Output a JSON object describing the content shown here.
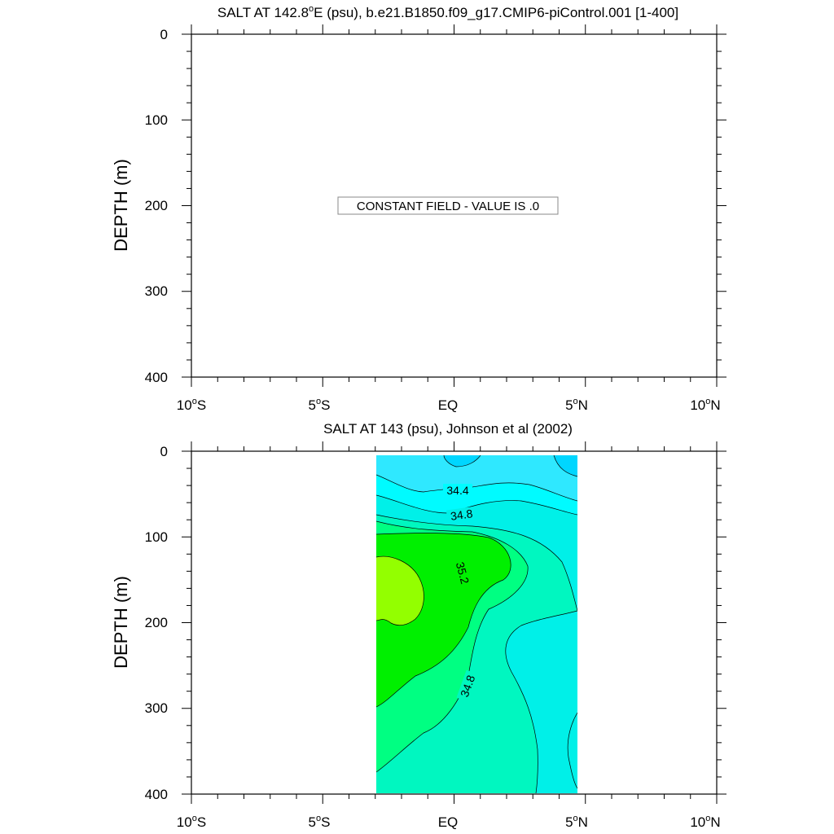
{
  "chart_data": [
    {
      "type": "contour",
      "title_main": "SALT AT 142.8",
      "title_deg": "o",
      "title_rest": "E (psu), b.e21.B1850.f09_g17.CMIP6-piControl.001 [1-400]",
      "ylabel": "DEPTH (m)",
      "xlabel": "",
      "xlim": [
        -10,
        10
      ],
      "ylim": [
        0,
        400
      ],
      "y_inverted": true,
      "x_ticks": [
        {
          "value": -10,
          "num": "10",
          "deg": "o",
          "hemi": "S"
        },
        {
          "value": -5,
          "num": "5",
          "deg": "o",
          "hemi": "S"
        },
        {
          "value": 0,
          "num": "EQ",
          "deg": "",
          "hemi": ""
        },
        {
          "value": 5,
          "num": "5",
          "deg": "o",
          "hemi": "N"
        },
        {
          "value": 10,
          "num": "10",
          "deg": "o",
          "hemi": "N"
        }
      ],
      "y_ticks": [
        0,
        100,
        200,
        300,
        400
      ],
      "annotation": "CONSTANT FIELD - VALUE IS .0",
      "grid": false
    },
    {
      "type": "contour",
      "title": "SALT AT 143 (psu), Johnson et al (2002)",
      "ylabel": "DEPTH (m)",
      "xlabel": "",
      "xlim": [
        -10,
        10
      ],
      "ylim": [
        0,
        400
      ],
      "y_inverted": true,
      "data_extent_x": [
        -2.8,
        5
      ],
      "data_extent_y": [
        5,
        400
      ],
      "x_ticks": [
        {
          "value": -10,
          "num": "10",
          "deg": "o",
          "hemi": "S"
        },
        {
          "value": -5,
          "num": "5",
          "deg": "o",
          "hemi": "S"
        },
        {
          "value": 0,
          "num": "EQ",
          "deg": "",
          "hemi": ""
        },
        {
          "value": 5,
          "num": "5",
          "deg": "o",
          "hemi": "N"
        },
        {
          "value": 10,
          "num": "10",
          "deg": "o",
          "hemi": "N"
        }
      ],
      "y_ticks": [
        0,
        100,
        200,
        300,
        400
      ],
      "contour_labels": [
        {
          "text": "34.4",
          "x": 0.4,
          "y": 45,
          "angle": 0
        },
        {
          "text": "34.8",
          "x": 0.5,
          "y": 70,
          "angle": -8
        },
        {
          "text": "35.2",
          "x": 0.4,
          "y": 143,
          "angle": 75
        },
        {
          "text": "34.8",
          "x": 0.8,
          "y": 272,
          "angle": -70
        }
      ],
      "salinity_levels": [
        {
          "range": "below 34.0",
          "color": "#00d6ff"
        },
        {
          "range": "34.0-34.4",
          "color": "#2fe8ff"
        },
        {
          "range": "34.4-34.6",
          "color": "#00fbff"
        },
        {
          "range": "34.6-34.8",
          "color": "#00f0e8"
        },
        {
          "range": "34.8-35.0",
          "color": "#00f7c0"
        },
        {
          "range": "35.0-35.2",
          "color": "#00ff82"
        },
        {
          "range": "35.2-35.4",
          "color": "#00f000"
        },
        {
          "range": "above 35.4",
          "color": "#93ff00"
        }
      ],
      "grid": false
    }
  ]
}
